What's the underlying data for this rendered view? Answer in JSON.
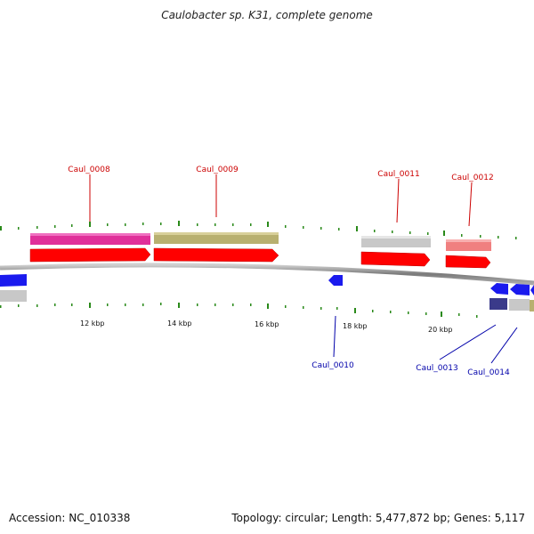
{
  "header": {
    "title": "Caulobacter sp. K31, complete genome"
  },
  "footer": {
    "accession": "Accession: NC_010338",
    "topology": "Topology: circular; Length: 5,477,872 bp; Genes: 5,117"
  },
  "scale": {
    "labels": [
      "12 kbp",
      "14 kbp",
      "16 kbp",
      "18 kbp",
      "20 kbp"
    ]
  },
  "genes": {
    "forward": [
      {
        "name": "Caul_0008",
        "color": "#e0309a"
      },
      {
        "name": "Caul_0009",
        "color": "#b8b070"
      },
      {
        "name": "Caul_0011",
        "color": "#c8c8c8"
      },
      {
        "name": "Caul_0012",
        "color": "#f08080"
      }
    ],
    "reverse": [
      {
        "name": "Caul_0010",
        "color": "#1a1aee"
      },
      {
        "name": "Caul_0013",
        "color": "#3a3a8a"
      },
      {
        "name": "Caul_0014",
        "color": "#c8c8c8"
      }
    ]
  },
  "colors": {
    "forward_cds": "#ff0000",
    "reverse_cds": "#0000ff",
    "backbone": "#888888",
    "tick": "#2a8a1a",
    "forward_label": "#cc0000",
    "reverse_label": "#0000aa"
  }
}
